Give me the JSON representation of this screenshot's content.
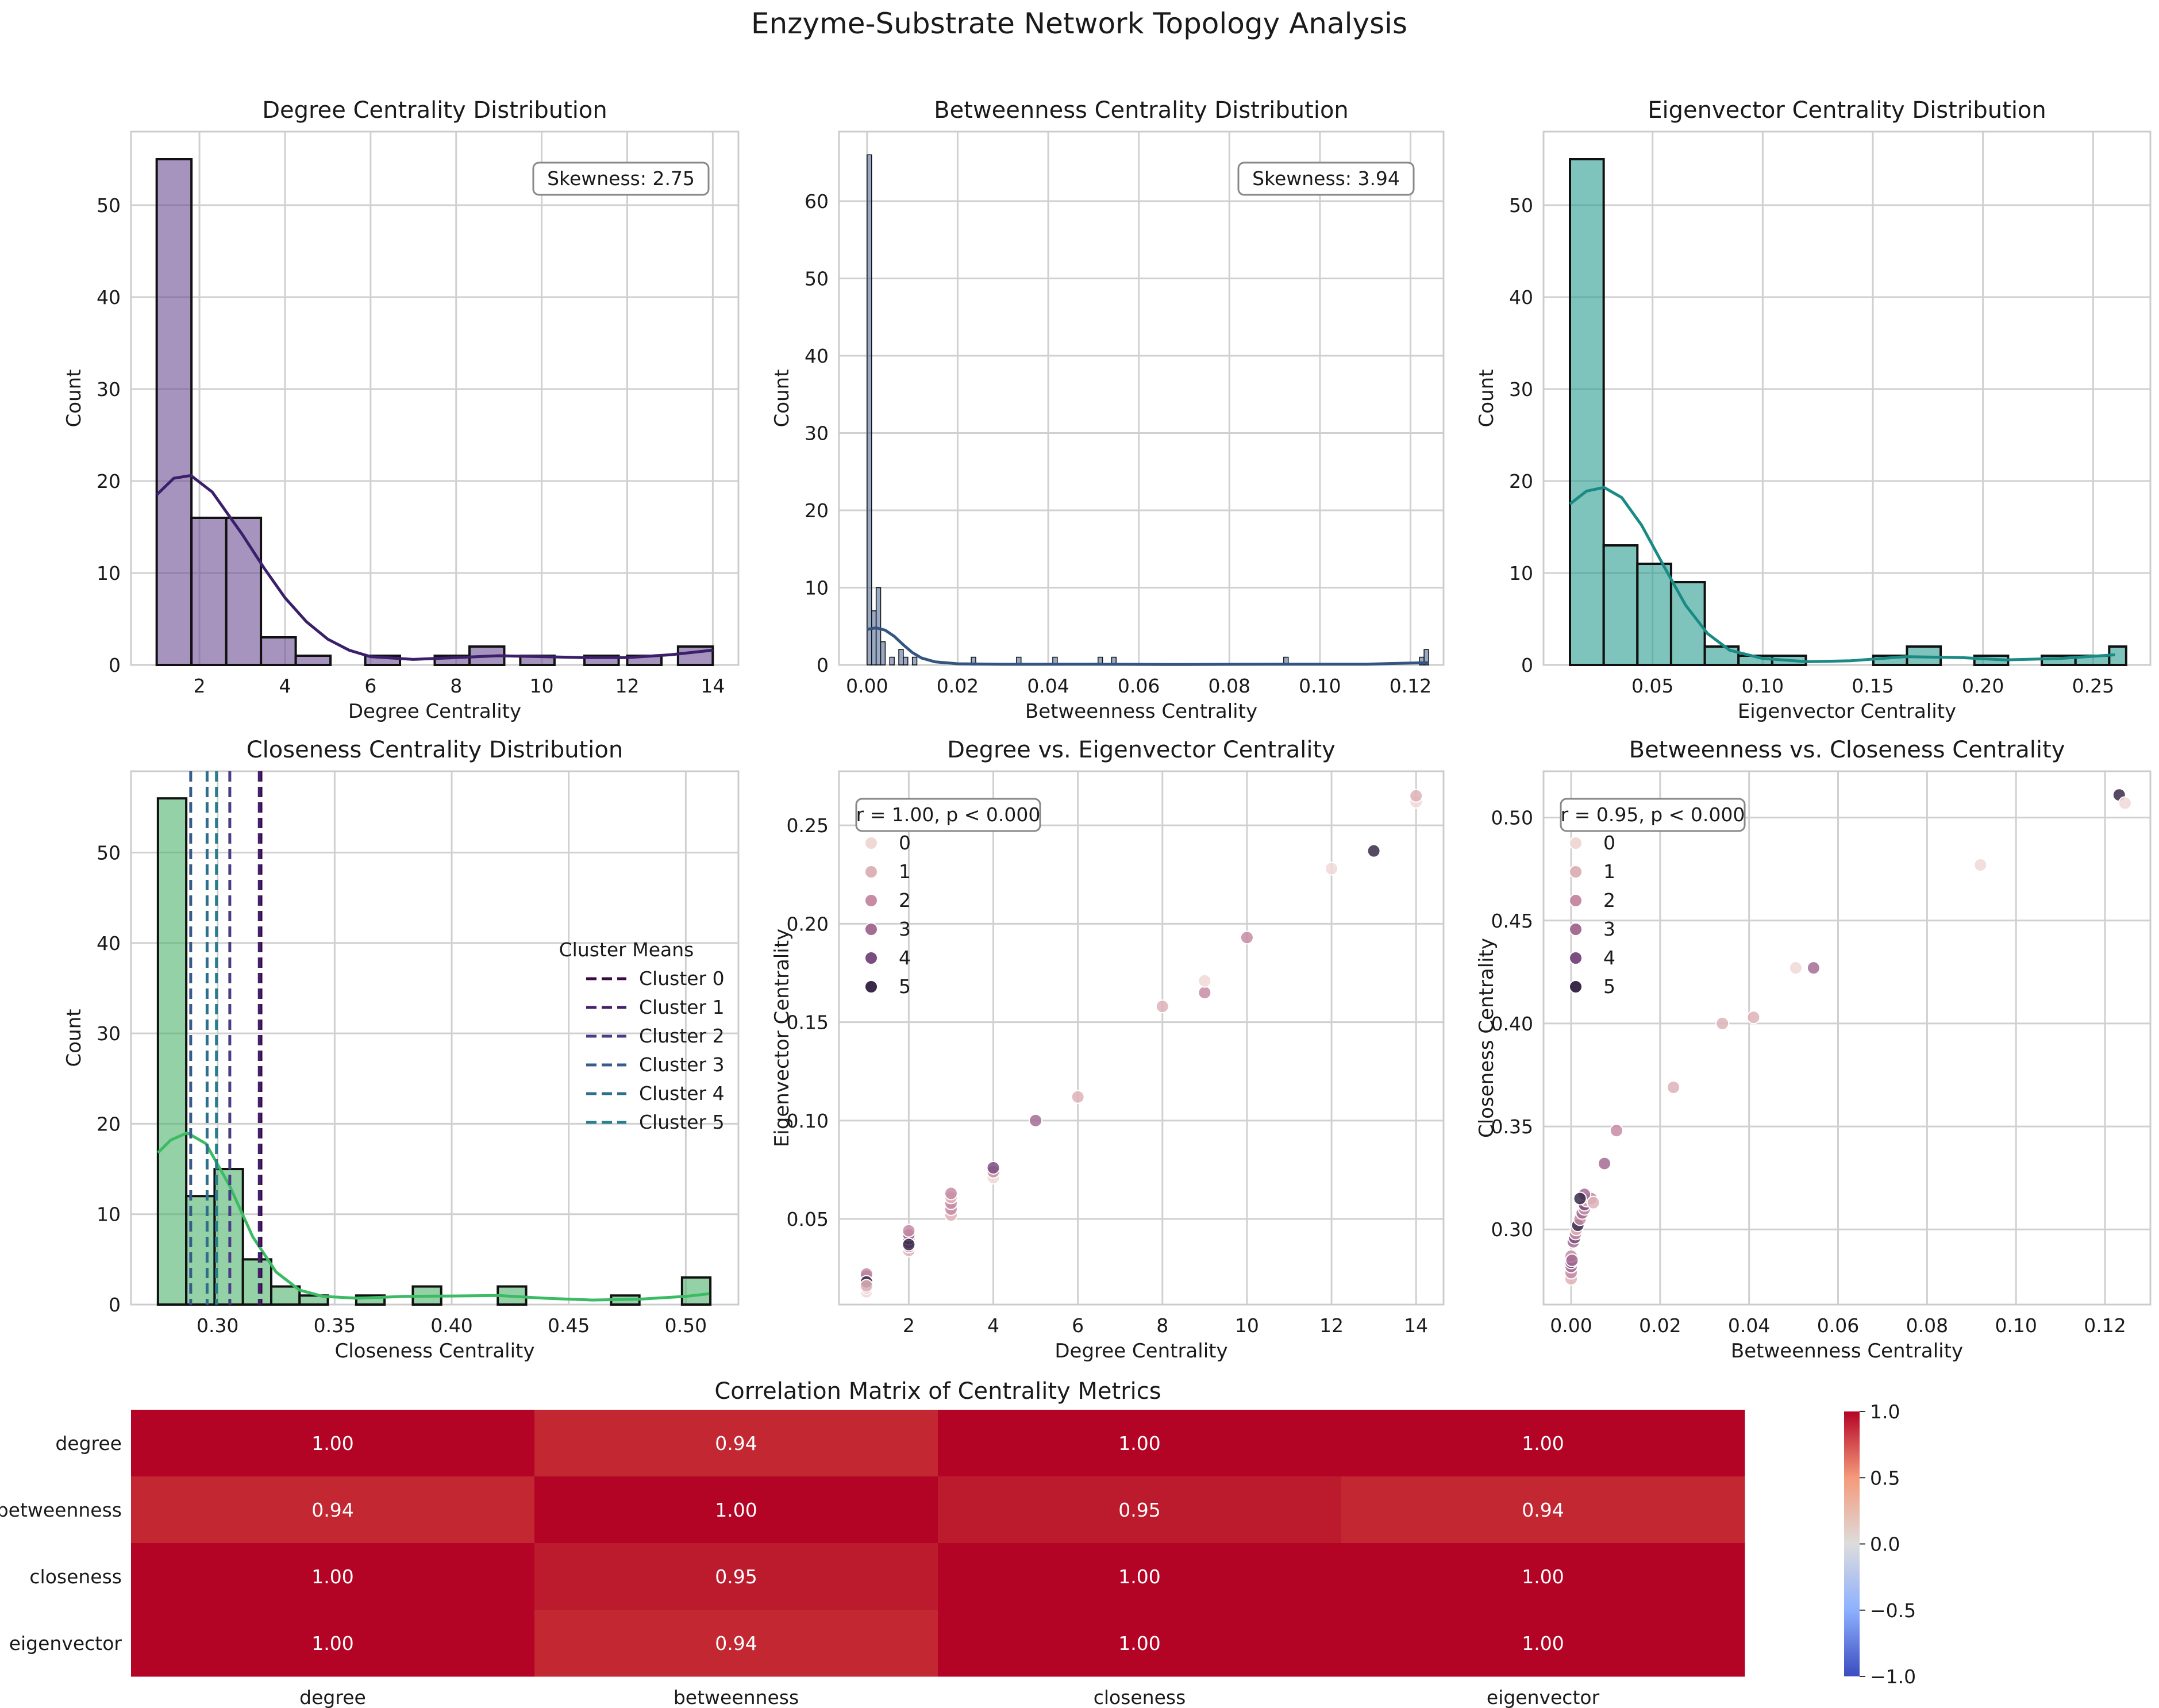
{
  "figure": {
    "title": "Enzyme-Substrate Network Topology Analysis"
  },
  "colors": {
    "purple": "#6a4c93",
    "purple_line": "#3b1f6a",
    "steel": "#56729e",
    "steel_line": "#34557f",
    "teal": "#2a9d8f",
    "teal_line": "#1a8a84",
    "green": "#4cb36a",
    "green_line": "#3bbb64",
    "cluster": [
      "#f0d8d6",
      "#ddb3b8",
      "#c68ca4",
      "#a56c94",
      "#7a4f80",
      "#3a2a4a"
    ],
    "cluster_mean_lines": [
      "#3b0a45",
      "#44226b",
      "#4b3c86",
      "#3a5a8c",
      "#2e6f8e",
      "#277f8e"
    ]
  },
  "chart_data": [
    {
      "id": "deg",
      "type": "histogram",
      "title": "Degree Centrality Distribution",
      "xlabel": "Degree Centrality",
      "ylabel": "Count",
      "xlim": [
        0.4,
        14.6
      ],
      "ylim": [
        0,
        58
      ],
      "xticks": [
        2,
        4,
        6,
        8,
        10,
        12,
        14
      ],
      "xtick_labels": [
        "2",
        "4",
        "6",
        "8",
        "10",
        "12",
        "14"
      ],
      "yticks": [
        0,
        10,
        20,
        30,
        40,
        50
      ],
      "ytick_labels": [
        "0",
        "10",
        "20",
        "30",
        "40",
        "50"
      ],
      "bins": [
        [
          1,
          1.8125,
          55
        ],
        [
          1.8125,
          2.625,
          16
        ],
        [
          2.625,
          3.4375,
          16
        ],
        [
          3.4375,
          4.25,
          3
        ],
        [
          4.25,
          5.0625,
          1
        ],
        [
          5.875,
          6.6875,
          1
        ],
        [
          7.5,
          8.3125,
          1
        ],
        [
          8.3125,
          9.125,
          2
        ],
        [
          9.5,
          10.3,
          1
        ],
        [
          11.0,
          11.8,
          1
        ],
        [
          12.0,
          12.8,
          1
        ],
        [
          13.1875,
          14,
          2
        ]
      ],
      "kde": [
        [
          1,
          18.5
        ],
        [
          1.4,
          20.3
        ],
        [
          1.8,
          20.6
        ],
        [
          2.3,
          18.8
        ],
        [
          3,
          14.2
        ],
        [
          3.5,
          10.6
        ],
        [
          4,
          7.3
        ],
        [
          4.5,
          4.7
        ],
        [
          5,
          2.8
        ],
        [
          5.5,
          1.6
        ],
        [
          6,
          0.9
        ],
        [
          7,
          0.6
        ],
        [
          8,
          0.8
        ],
        [
          9,
          1.0
        ],
        [
          10,
          0.9
        ],
        [
          11,
          0.8
        ],
        [
          12,
          0.8
        ],
        [
          13,
          1.1
        ],
        [
          14,
          1.6
        ]
      ],
      "annotation": "Skewness: 2.75",
      "color": "purple"
    },
    {
      "id": "bet",
      "type": "histogram",
      "title": "Betweenness Centrality Distribution",
      "xlabel": "Betweenness Centrality",
      "ylabel": "Count",
      "xlim": [
        -0.0062,
        0.1273
      ],
      "ylim": [
        0,
        69
      ],
      "xticks": [
        0,
        0.02,
        0.04,
        0.06,
        0.08,
        0.1,
        0.12
      ],
      "xtick_labels": [
        "0.00",
        "0.02",
        "0.04",
        "0.06",
        "0.08",
        "0.10",
        "0.12"
      ],
      "yticks": [
        0,
        10,
        20,
        30,
        40,
        50,
        60
      ],
      "ytick_labels": [
        "0",
        "10",
        "20",
        "30",
        "40",
        "50",
        "60"
      ],
      "bins": [
        [
          0,
          0.001,
          66
        ],
        [
          0.001,
          0.002,
          7
        ],
        [
          0.002,
          0.003,
          10
        ],
        [
          0.003,
          0.004,
          3
        ],
        [
          0.005,
          0.006,
          1
        ],
        [
          0.007,
          0.008,
          2
        ],
        [
          0.008,
          0.009,
          1
        ],
        [
          0.01,
          0.011,
          1
        ],
        [
          0.023,
          0.024,
          1
        ],
        [
          0.033,
          0.034,
          1
        ],
        [
          0.041,
          0.042,
          1
        ],
        [
          0.051,
          0.052,
          1
        ],
        [
          0.054,
          0.055,
          1
        ],
        [
          0.092,
          0.093,
          1
        ],
        [
          0.122,
          0.123,
          1
        ],
        [
          0.123,
          0.124,
          2
        ]
      ],
      "kde": [
        [
          0,
          4.6
        ],
        [
          0.002,
          4.8
        ],
        [
          0.004,
          4.5
        ],
        [
          0.006,
          3.7
        ],
        [
          0.008,
          2.6
        ],
        [
          0.01,
          1.6
        ],
        [
          0.012,
          0.9
        ],
        [
          0.015,
          0.4
        ],
        [
          0.02,
          0.15
        ],
        [
          0.03,
          0.08
        ],
        [
          0.05,
          0.1
        ],
        [
          0.07,
          0.05
        ],
        [
          0.09,
          0.1
        ],
        [
          0.11,
          0.1
        ],
        [
          0.124,
          0.3
        ]
      ],
      "annotation": "Skewness: 3.94",
      "color": "steel"
    },
    {
      "id": "eig",
      "type": "histogram",
      "title": "Eigenvector Centrality Distribution",
      "xlabel": "Eigenvector Centrality",
      "ylabel": "Count",
      "xlim": [
        0.0005,
        0.276
      ],
      "ylim": [
        0,
        58
      ],
      "xticks": [
        0.05,
        0.1,
        0.15,
        0.2,
        0.25
      ],
      "xtick_labels": [
        "0.05",
        "0.10",
        "0.15",
        "0.20",
        "0.25"
      ],
      "yticks": [
        0,
        10,
        20,
        30,
        40,
        50
      ],
      "ytick_labels": [
        "0",
        "10",
        "20",
        "30",
        "40",
        "50"
      ],
      "bins": [
        [
          0.0125,
          0.0278,
          55
        ],
        [
          0.0278,
          0.0431,
          13
        ],
        [
          0.0431,
          0.0584,
          11
        ],
        [
          0.0584,
          0.0737,
          9
        ],
        [
          0.0737,
          0.089,
          2
        ],
        [
          0.089,
          0.1043,
          1
        ],
        [
          0.1043,
          0.1196,
          1
        ],
        [
          0.1502,
          0.1655,
          1
        ],
        [
          0.1655,
          0.1808,
          2
        ],
        [
          0.1961,
          0.2114,
          1
        ],
        [
          0.2267,
          0.242,
          1
        ],
        [
          0.242,
          0.2573,
          1
        ],
        [
          0.2573,
          0.265,
          2
        ]
      ],
      "kde": [
        [
          0.0125,
          17.5
        ],
        [
          0.02,
          18.9
        ],
        [
          0.028,
          19.3
        ],
        [
          0.036,
          18.2
        ],
        [
          0.045,
          15.2
        ],
        [
          0.055,
          10.8
        ],
        [
          0.065,
          6.5
        ],
        [
          0.075,
          3.4
        ],
        [
          0.085,
          1.6
        ],
        [
          0.1,
          0.7
        ],
        [
          0.12,
          0.35
        ],
        [
          0.14,
          0.45
        ],
        [
          0.165,
          0.9
        ],
        [
          0.19,
          0.8
        ],
        [
          0.21,
          0.55
        ],
        [
          0.235,
          0.7
        ],
        [
          0.26,
          1.1
        ]
      ],
      "color": "teal"
    },
    {
      "id": "clo",
      "type": "histogram",
      "title": "Closeness Centrality Distribution",
      "xlabel": "Closeness Centrality",
      "ylabel": "Count",
      "xlim": [
        0.263,
        0.5225
      ],
      "ylim": [
        0,
        59
      ],
      "xticks": [
        0.3,
        0.35,
        0.4,
        0.45,
        0.5
      ],
      "xtick_labels": [
        "0.30",
        "0.35",
        "0.40",
        "0.45",
        "0.50"
      ],
      "yticks": [
        0,
        10,
        20,
        30,
        40,
        50
      ],
      "ytick_labels": [
        "0",
        "10",
        "20",
        "30",
        "40",
        "50"
      ],
      "bins": [
        [
          0.2745,
          0.2866,
          56
        ],
        [
          0.2866,
          0.2987,
          12
        ],
        [
          0.2987,
          0.3108,
          15
        ],
        [
          0.3108,
          0.3229,
          5
        ],
        [
          0.3229,
          0.335,
          2
        ],
        [
          0.335,
          0.3471,
          1
        ],
        [
          0.3592,
          0.3713,
          1
        ],
        [
          0.3834,
          0.3955,
          2
        ],
        [
          0.4076,
          0.4197,
          0
        ],
        [
          0.4197,
          0.4318,
          2
        ],
        [
          0.4681,
          0.4802,
          1
        ],
        [
          0.4923,
          0.5044,
          0
        ],
        [
          0.4984,
          0.5105,
          3
        ]
      ],
      "kde": [
        [
          0.2745,
          16.8
        ],
        [
          0.28,
          18.2
        ],
        [
          0.287,
          19.0
        ],
        [
          0.295,
          17.8
        ],
        [
          0.305,
          13.2
        ],
        [
          0.315,
          7.5
        ],
        [
          0.325,
          3.6
        ],
        [
          0.335,
          1.6
        ],
        [
          0.345,
          0.9
        ],
        [
          0.36,
          0.7
        ],
        [
          0.38,
          0.9
        ],
        [
          0.4,
          0.95
        ],
        [
          0.42,
          1.0
        ],
        [
          0.44,
          0.7
        ],
        [
          0.46,
          0.5
        ],
        [
          0.48,
          0.6
        ],
        [
          0.5,
          0.9
        ],
        [
          0.51,
          1.2
        ]
      ],
      "cluster_means": [
        0.3185,
        0.3178,
        0.3052,
        0.2885,
        0.2955,
        0.2995
      ],
      "legend_title": "Cluster Means",
      "legend": [
        "Cluster 0",
        "Cluster 1",
        "Cluster 2",
        "Cluster 3",
        "Cluster 4",
        "Cluster 5"
      ],
      "color": "green"
    },
    {
      "id": "sc1",
      "type": "scatter",
      "title": "Degree vs. Eigenvector Centrality",
      "xlabel": "Degree Centrality",
      "ylabel": "Eigenvector Centrality",
      "xlim": [
        0.35,
        14.65
      ],
      "ylim": [
        0.0065,
        0.2775
      ],
      "xticks": [
        2,
        4,
        6,
        8,
        10,
        12,
        14
      ],
      "xtick_labels": [
        "2",
        "4",
        "6",
        "8",
        "10",
        "12",
        "14"
      ],
      "yticks": [
        0.05,
        0.1,
        0.15,
        0.2,
        0.25
      ],
      "ytick_labels": [
        "0.05",
        "0.10",
        "0.15",
        "0.20",
        "0.25"
      ],
      "annotation": "r = 1.00, p < 0.000",
      "legend_title": "cluster",
      "legend": [
        "0",
        "1",
        "2",
        "3",
        "4",
        "5"
      ],
      "points": [
        [
          1,
          0.013,
          0
        ],
        [
          1,
          0.015,
          1
        ],
        [
          1,
          0.017,
          2
        ],
        [
          1,
          0.019,
          3
        ],
        [
          1,
          0.021,
          4
        ],
        [
          1,
          0.022,
          2
        ],
        [
          1,
          0.018,
          5
        ],
        [
          1,
          0.016,
          1
        ],
        [
          2,
          0.034,
          1
        ],
        [
          2,
          0.036,
          2
        ],
        [
          2,
          0.038,
          3
        ],
        [
          2,
          0.04,
          4
        ],
        [
          2,
          0.042,
          3
        ],
        [
          2,
          0.044,
          2
        ],
        [
          2,
          0.037,
          5
        ],
        [
          3,
          0.052,
          1
        ],
        [
          3,
          0.055,
          2
        ],
        [
          3,
          0.058,
          2
        ],
        [
          3,
          0.061,
          1
        ],
        [
          3,
          0.063,
          2
        ],
        [
          4,
          0.071,
          0
        ],
        [
          4,
          0.074,
          2
        ],
        [
          4,
          0.076,
          4
        ],
        [
          5,
          0.1,
          3
        ],
        [
          6,
          0.112,
          1
        ],
        [
          8,
          0.158,
          1
        ],
        [
          9,
          0.165,
          2
        ],
        [
          9,
          0.171,
          0
        ],
        [
          10,
          0.193,
          2
        ],
        [
          12,
          0.228,
          0
        ],
        [
          13,
          0.237,
          5
        ],
        [
          14,
          0.262,
          0
        ],
        [
          14,
          0.265,
          1
        ]
      ]
    },
    {
      "id": "sc2",
      "type": "scatter",
      "title": "Betweenness vs. Closeness Centrality",
      "xlabel": "Betweenness Centrality",
      "ylabel": "Closeness Centrality",
      "xlim": [
        -0.0062,
        0.1302
      ],
      "ylim": [
        0.2635,
        0.5225
      ],
      "xticks": [
        0,
        0.02,
        0.04,
        0.06,
        0.08,
        0.1,
        0.12
      ],
      "xtick_labels": [
        "0.00",
        "0.02",
        "0.04",
        "0.06",
        "0.08",
        "0.10",
        "0.12"
      ],
      "yticks": [
        0.3,
        0.35,
        0.4,
        0.45,
        0.5
      ],
      "ytick_labels": [
        "0.30",
        "0.35",
        "0.40",
        "0.45",
        "0.50"
      ],
      "annotation": "r = 0.95, p < 0.000",
      "legend_title": "cluster",
      "legend": [
        "0",
        "1",
        "2",
        "3",
        "4",
        "5"
      ],
      "points": [
        [
          0,
          0.276,
          1
        ],
        [
          0,
          0.279,
          2
        ],
        [
          0,
          0.282,
          3
        ],
        [
          0,
          0.284,
          4
        ],
        [
          0,
          0.287,
          2
        ],
        [
          0.0002,
          0.285,
          3
        ],
        [
          0.0005,
          0.294,
          3
        ],
        [
          0.0008,
          0.296,
          4
        ],
        [
          0.001,
          0.298,
          2
        ],
        [
          0.0012,
          0.3,
          1
        ],
        [
          0.0015,
          0.302,
          5
        ],
        [
          0.002,
          0.305,
          2
        ],
        [
          0.0025,
          0.308,
          3
        ],
        [
          0.003,
          0.31,
          2
        ],
        [
          0.003,
          0.312,
          4
        ],
        [
          0.0035,
          0.314,
          1
        ],
        [
          0.004,
          0.316,
          0
        ],
        [
          0.0045,
          0.315,
          2
        ],
        [
          0.003,
          0.317,
          3
        ],
        [
          0.002,
          0.315,
          5
        ],
        [
          0.005,
          0.313,
          1
        ],
        [
          0.0075,
          0.332,
          3
        ],
        [
          0.0102,
          0.348,
          2
        ],
        [
          0.023,
          0.369,
          1
        ],
        [
          0.034,
          0.4,
          1
        ],
        [
          0.041,
          0.403,
          1
        ],
        [
          0.0505,
          0.427,
          0
        ],
        [
          0.0545,
          0.427,
          3
        ],
        [
          0.092,
          0.477,
          0
        ],
        [
          0.1232,
          0.511,
          5
        ],
        [
          0.1245,
          0.507,
          0
        ]
      ]
    },
    {
      "id": "heat",
      "type": "heatmap",
      "title": "Correlation Matrix of Centrality Metrics",
      "rows": [
        "degree",
        "betweenness",
        "closeness",
        "eigenvector"
      ],
      "cols": [
        "degree",
        "betweenness",
        "closeness",
        "eigenvector"
      ],
      "values": [
        [
          1.0,
          0.94,
          1.0,
          1.0
        ],
        [
          0.94,
          1.0,
          0.95,
          0.94
        ],
        [
          1.0,
          0.95,
          1.0,
          1.0
        ],
        [
          1.0,
          0.94,
          1.0,
          1.0
        ]
      ],
      "cell_labels": [
        [
          "1.00",
          "0.94",
          "1.00",
          "1.00"
        ],
        [
          "0.94",
          "1.00",
          "0.95",
          "0.94"
        ],
        [
          "1.00",
          "0.95",
          "1.00",
          "1.00"
        ],
        [
          "1.00",
          "0.94",
          "1.00",
          "1.00"
        ]
      ],
      "vmin": -1,
      "vmax": 1,
      "colorbar_ticks": [
        -1.0,
        -0.5,
        0.0,
        0.5,
        1.0
      ],
      "colorbar_tick_labels": [
        "−1.0",
        "−0.5",
        "0.0",
        "0.5",
        "1.0"
      ]
    }
  ]
}
